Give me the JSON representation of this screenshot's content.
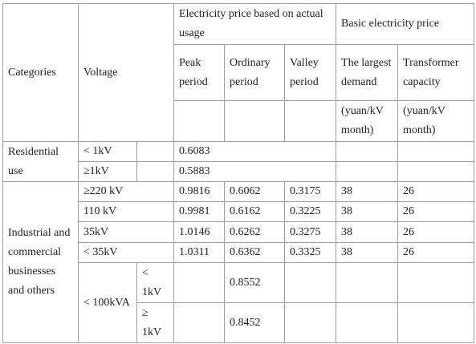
{
  "table": {
    "header": [
      [
        "Categories",
        "Voltage",
        "Electricity price based on actual usage",
        "Basic electricity price"
      ],
      [
        "Peak period",
        "Ordinary period",
        "Valley period",
        "The largest demand",
        "Transformer capacity"
      ],
      [
        "(yuan/kV month)",
        "(yuan/kV month)"
      ]
    ],
    "rows": [
      [
        "Residential use",
        "< 1kV",
        "0.6083"
      ],
      [
        "≥1kV",
        "0.5883"
      ],
      [
        "Industrial and commercial businesses and others",
        "≥220 kV",
        "0.9816",
        "0.6062",
        "0.3175",
        "38",
        "26"
      ],
      [
        "110 kV",
        "0.9981",
        "0.6162",
        "0.3225",
        "38",
        "26"
      ],
      [
        "35kV",
        "1.0146",
        "0.6262",
        "0.3275",
        "38",
        "26"
      ],
      [
        "< 35kV",
        "1.0311",
        "0.6362",
        "0.3325",
        "38",
        "26"
      ],
      [
        "< 100kVA",
        "< 1kV",
        "0.8552"
      ],
      [
        "≥ 1kV",
        "0.8452"
      ]
    ]
  }
}
